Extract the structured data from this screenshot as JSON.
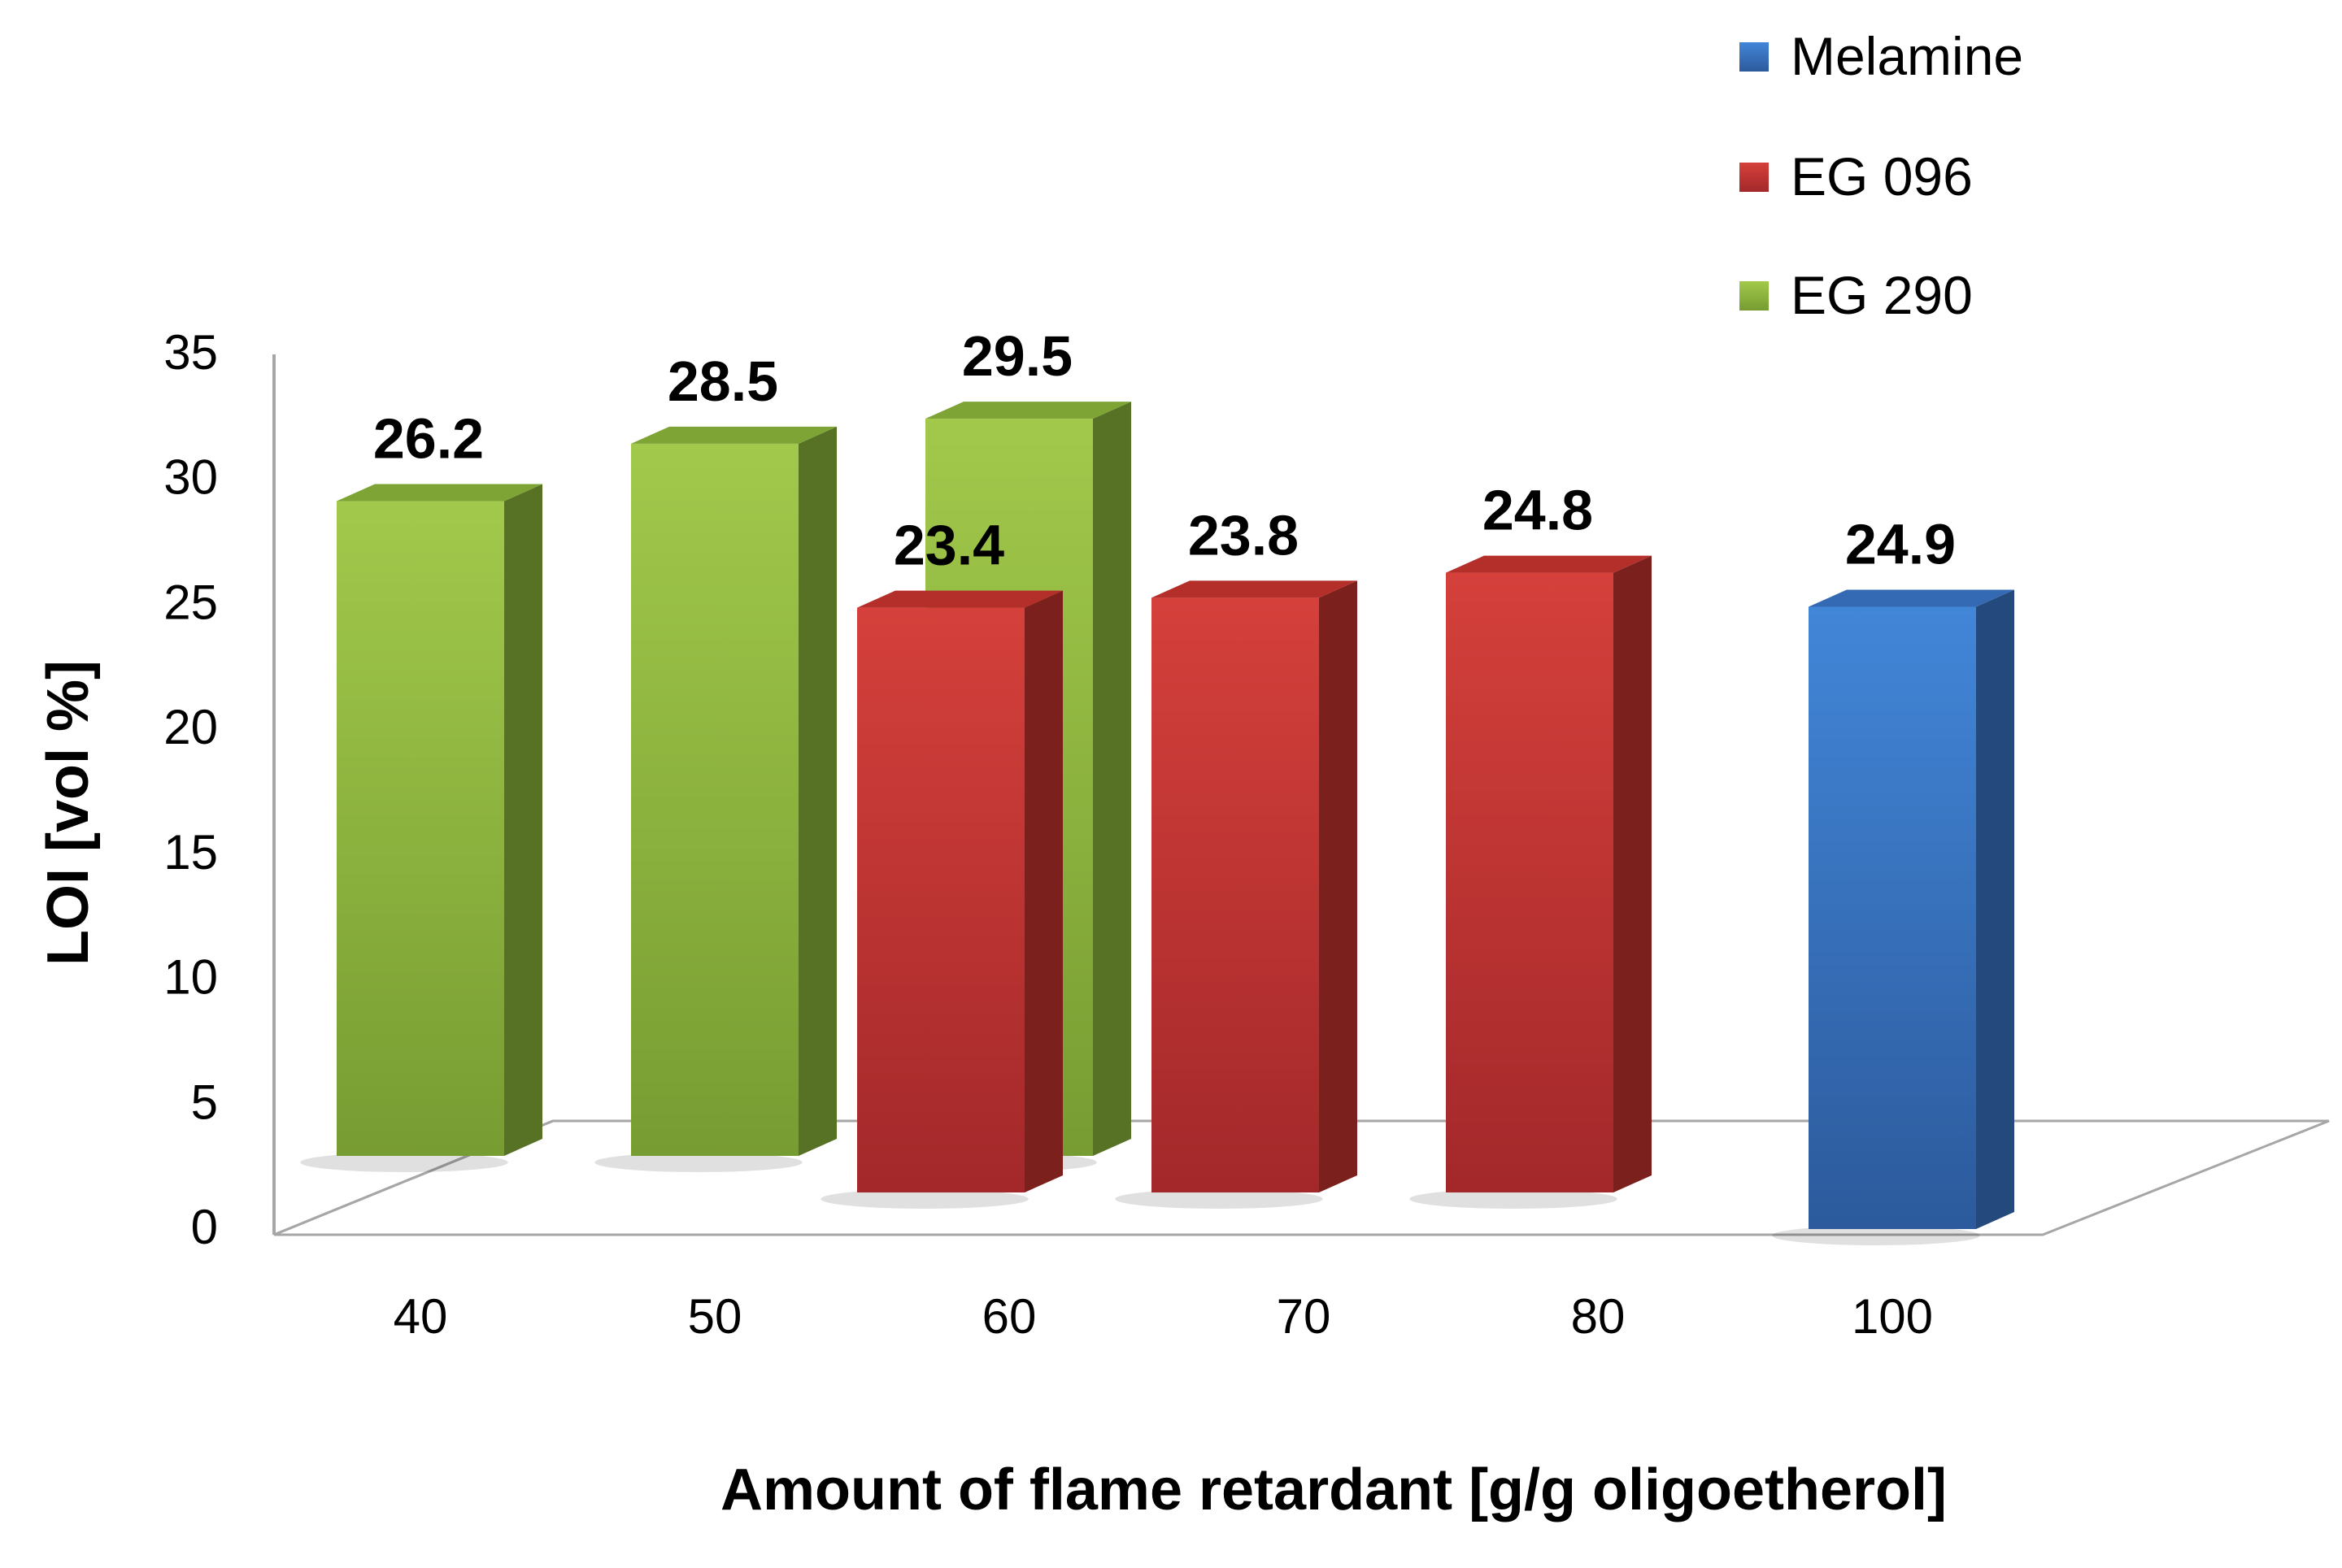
{
  "chart_data": {
    "type": "bar",
    "title": "",
    "xlabel": "Amount of flame retardant [g/g oligoetherol]",
    "ylabel": "LOI [vol %]",
    "ylim": [
      0,
      35
    ],
    "yticks": [
      "0",
      "5",
      "10",
      "15",
      "20",
      "25",
      "30",
      "35"
    ],
    "categories": [
      "40",
      "50",
      "60",
      "70",
      "80",
      "100"
    ],
    "legend_position": "top-right",
    "three_d": true,
    "series": [
      {
        "name": "Melamine",
        "color": "#3a76c8",
        "values": [
          null,
          null,
          null,
          null,
          null,
          24.9
        ]
      },
      {
        "name": "EG 096",
        "color": "#c8332f",
        "values": [
          null,
          null,
          23.4,
          23.8,
          24.8,
          null
        ]
      },
      {
        "name": "EG 290",
        "color": "#8db63c",
        "values": [
          26.2,
          28.5,
          29.5,
          null,
          null,
          null
        ]
      }
    ],
    "data_labels": {
      "Melamine": [
        null,
        null,
        null,
        null,
        null,
        "24.9"
      ],
      "EG 096": [
        null,
        null,
        "23.4",
        "23.8",
        "24.8",
        null
      ],
      "EG 290": [
        "26.2",
        "28.5",
        "29.5",
        null,
        null,
        null
      ]
    }
  }
}
